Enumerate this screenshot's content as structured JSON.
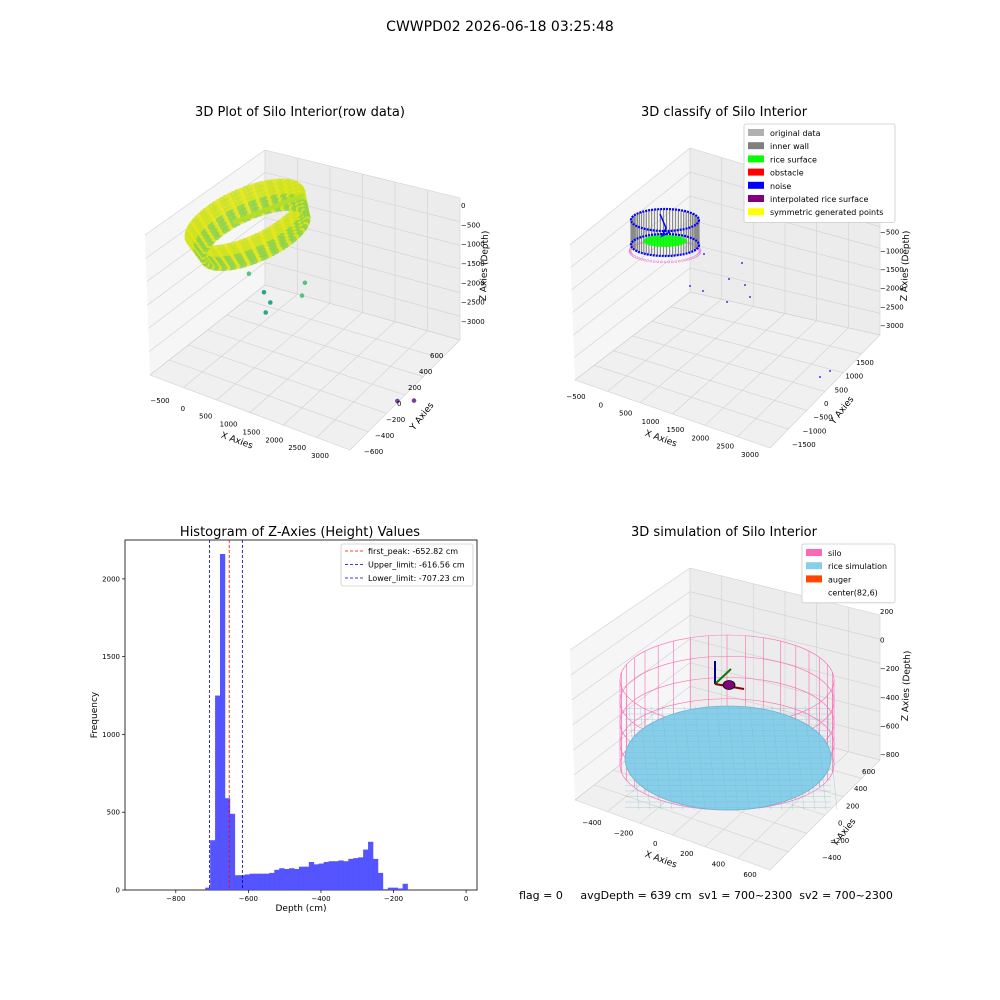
{
  "figure": {
    "title": "CWWPD02 2026-06-18 03:25:48"
  },
  "status": {
    "flag": "flag = 0",
    "avg_depth": "avgDepth = 639 cm",
    "sv1": "sv1 = 700~2300",
    "sv2": "sv2 = 700~2300"
  },
  "colors": {
    "pane_fill": "#f2f2f2",
    "grid": "#cfcfcf",
    "original_data": "#b0b0b0",
    "inner_wall": "#808080",
    "rice_surface": "#00ff00",
    "obstacle": "#ff0000",
    "noise": "#0000ff",
    "interpolated_rice_surface": "#800080",
    "symmetric_generated_points": "#ffff00",
    "silo": "#ff69b4",
    "rice_simulation": "#87ceeb",
    "auger": "#ff4500",
    "hist_bar": "#4c4cff"
  },
  "chart_data": [
    {
      "type": "scatter3d",
      "title": "3D Plot of Silo Interior(row data)",
      "xlabel": "X Axies",
      "ylabel": "Y Axies",
      "zlabel": "Z Axies (Depth)",
      "x_ticks": [
        "−500",
        "0",
        "500",
        "1000",
        "1500",
        "2000",
        "2500",
        "3000"
      ],
      "y_ticks": [
        "600",
        "400",
        "200",
        "0",
        "−200",
        "−400",
        "−600"
      ],
      "z_ticks": [
        "0",
        "−500",
        "−1000",
        "−1500",
        "−2000",
        "−2500",
        "−3000"
      ],
      "colormap": "viridis",
      "outlier_points": [
        {
          "x": 700,
          "y": -300,
          "z": -1700
        },
        {
          "x": 900,
          "y": -250,
          "z": -2000
        },
        {
          "x": 1300,
          "y": -350,
          "z": -1900
        },
        {
          "x": 1600,
          "y": -200,
          "z": -1450
        },
        {
          "x": 1400,
          "y": -100,
          "z": -1300
        },
        {
          "x": 1200,
          "y": -350,
          "z": -2250
        },
        {
          "x": 2900,
          "y": 100,
          "z": -3000
        },
        {
          "x": 3000,
          "y": 200,
          "z": -2900
        }
      ]
    },
    {
      "type": "scatter3d",
      "title": "3D classify of Silo Interior",
      "xlabel": "X Axies",
      "ylabel": "Y Axies",
      "zlabel": "Z Axies (Depth)",
      "x_ticks": [
        "−500",
        "0",
        "500",
        "1000",
        "1500",
        "2000",
        "2500",
        "3000"
      ],
      "y_ticks": [
        "1500",
        "1000",
        "500",
        "0",
        "−500",
        "−1000",
        "−1500"
      ],
      "z_ticks": [
        "0",
        "−500",
        "−1000",
        "−1500",
        "−2000",
        "−2500",
        "−3000"
      ],
      "legend": [
        {
          "label": "original data",
          "color_key": "original_data"
        },
        {
          "label": "inner wall",
          "color_key": "inner_wall"
        },
        {
          "label": "rice surface",
          "color_key": "rice_surface"
        },
        {
          "label": "obstacle",
          "color_key": "obstacle"
        },
        {
          "label": "noise",
          "color_key": "noise"
        },
        {
          "label": "interpolated rice surface",
          "color_key": "interpolated_rice_surface"
        },
        {
          "label": "symmetric generated points",
          "color_key": "symmetric_generated_points"
        }
      ],
      "legend_position": "upper-right"
    },
    {
      "type": "bar",
      "title": "Histogram of Z-Axies (Height) Values",
      "xlabel": "Depth (cm)",
      "ylabel": "Frequency",
      "xlim": [
        -940,
        30
      ],
      "ylim": [
        0,
        2250
      ],
      "x_ticks": [
        {
          "value": -800,
          "label": "−800"
        },
        {
          "value": -600,
          "label": "−600"
        },
        {
          "value": -400,
          "label": "−400"
        },
        {
          "value": -200,
          "label": "−200"
        },
        {
          "value": 0,
          "label": "0"
        }
      ],
      "y_ticks": [
        {
          "value": 0,
          "label": "0"
        },
        {
          "value": 500,
          "label": "500"
        },
        {
          "value": 1000,
          "label": "1000"
        },
        {
          "value": 1500,
          "label": "1500"
        },
        {
          "value": 2000,
          "label": "2000"
        }
      ],
      "bin_start": -719,
      "bin_width": 13.6,
      "counts": [
        15,
        320,
        1250,
        2160,
        590,
        490,
        95,
        95,
        100,
        105,
        105,
        105,
        105,
        110,
        130,
        140,
        135,
        140,
        135,
        150,
        150,
        180,
        165,
        170,
        180,
        185,
        185,
        190,
        185,
        200,
        205,
        210,
        260,
        310,
        200,
        110,
        5,
        15,
        15,
        10,
        40
      ],
      "vlines": [
        {
          "label": "first_peak: -652.82 cm",
          "value": -652.82,
          "color": "#ff0000"
        },
        {
          "label": "Upper_limit: -616.56 cm",
          "value": -616.56,
          "color": "#0000aa"
        },
        {
          "label": "Lower_limit: -707.23 cm",
          "value": -707.23,
          "color": "#0000aa"
        }
      ],
      "legend_position": "upper-right"
    },
    {
      "type": "surface3d",
      "title": "3D simulation of Silo Interior",
      "xlabel": "X Axies",
      "ylabel": "Y Axies",
      "zlabel": "Z Axies (Depth)",
      "x_ticks": [
        "−400",
        "−200",
        "0",
        "200",
        "400",
        "600"
      ],
      "y_ticks": [
        "600",
        "400",
        "200",
        "0",
        "−200",
        "−400"
      ],
      "z_ticks": [
        "200",
        "0",
        "−200",
        "−400",
        "−600",
        "−800"
      ],
      "legend": [
        {
          "label": "silo",
          "color_key": "silo"
        },
        {
          "label": "rice simulation",
          "color_key": "rice_simulation"
        },
        {
          "label": "auger",
          "color_key": "auger"
        },
        {
          "label": "center(82,6)",
          "color_key": ""
        }
      ],
      "legend_position": "upper-right"
    }
  ]
}
